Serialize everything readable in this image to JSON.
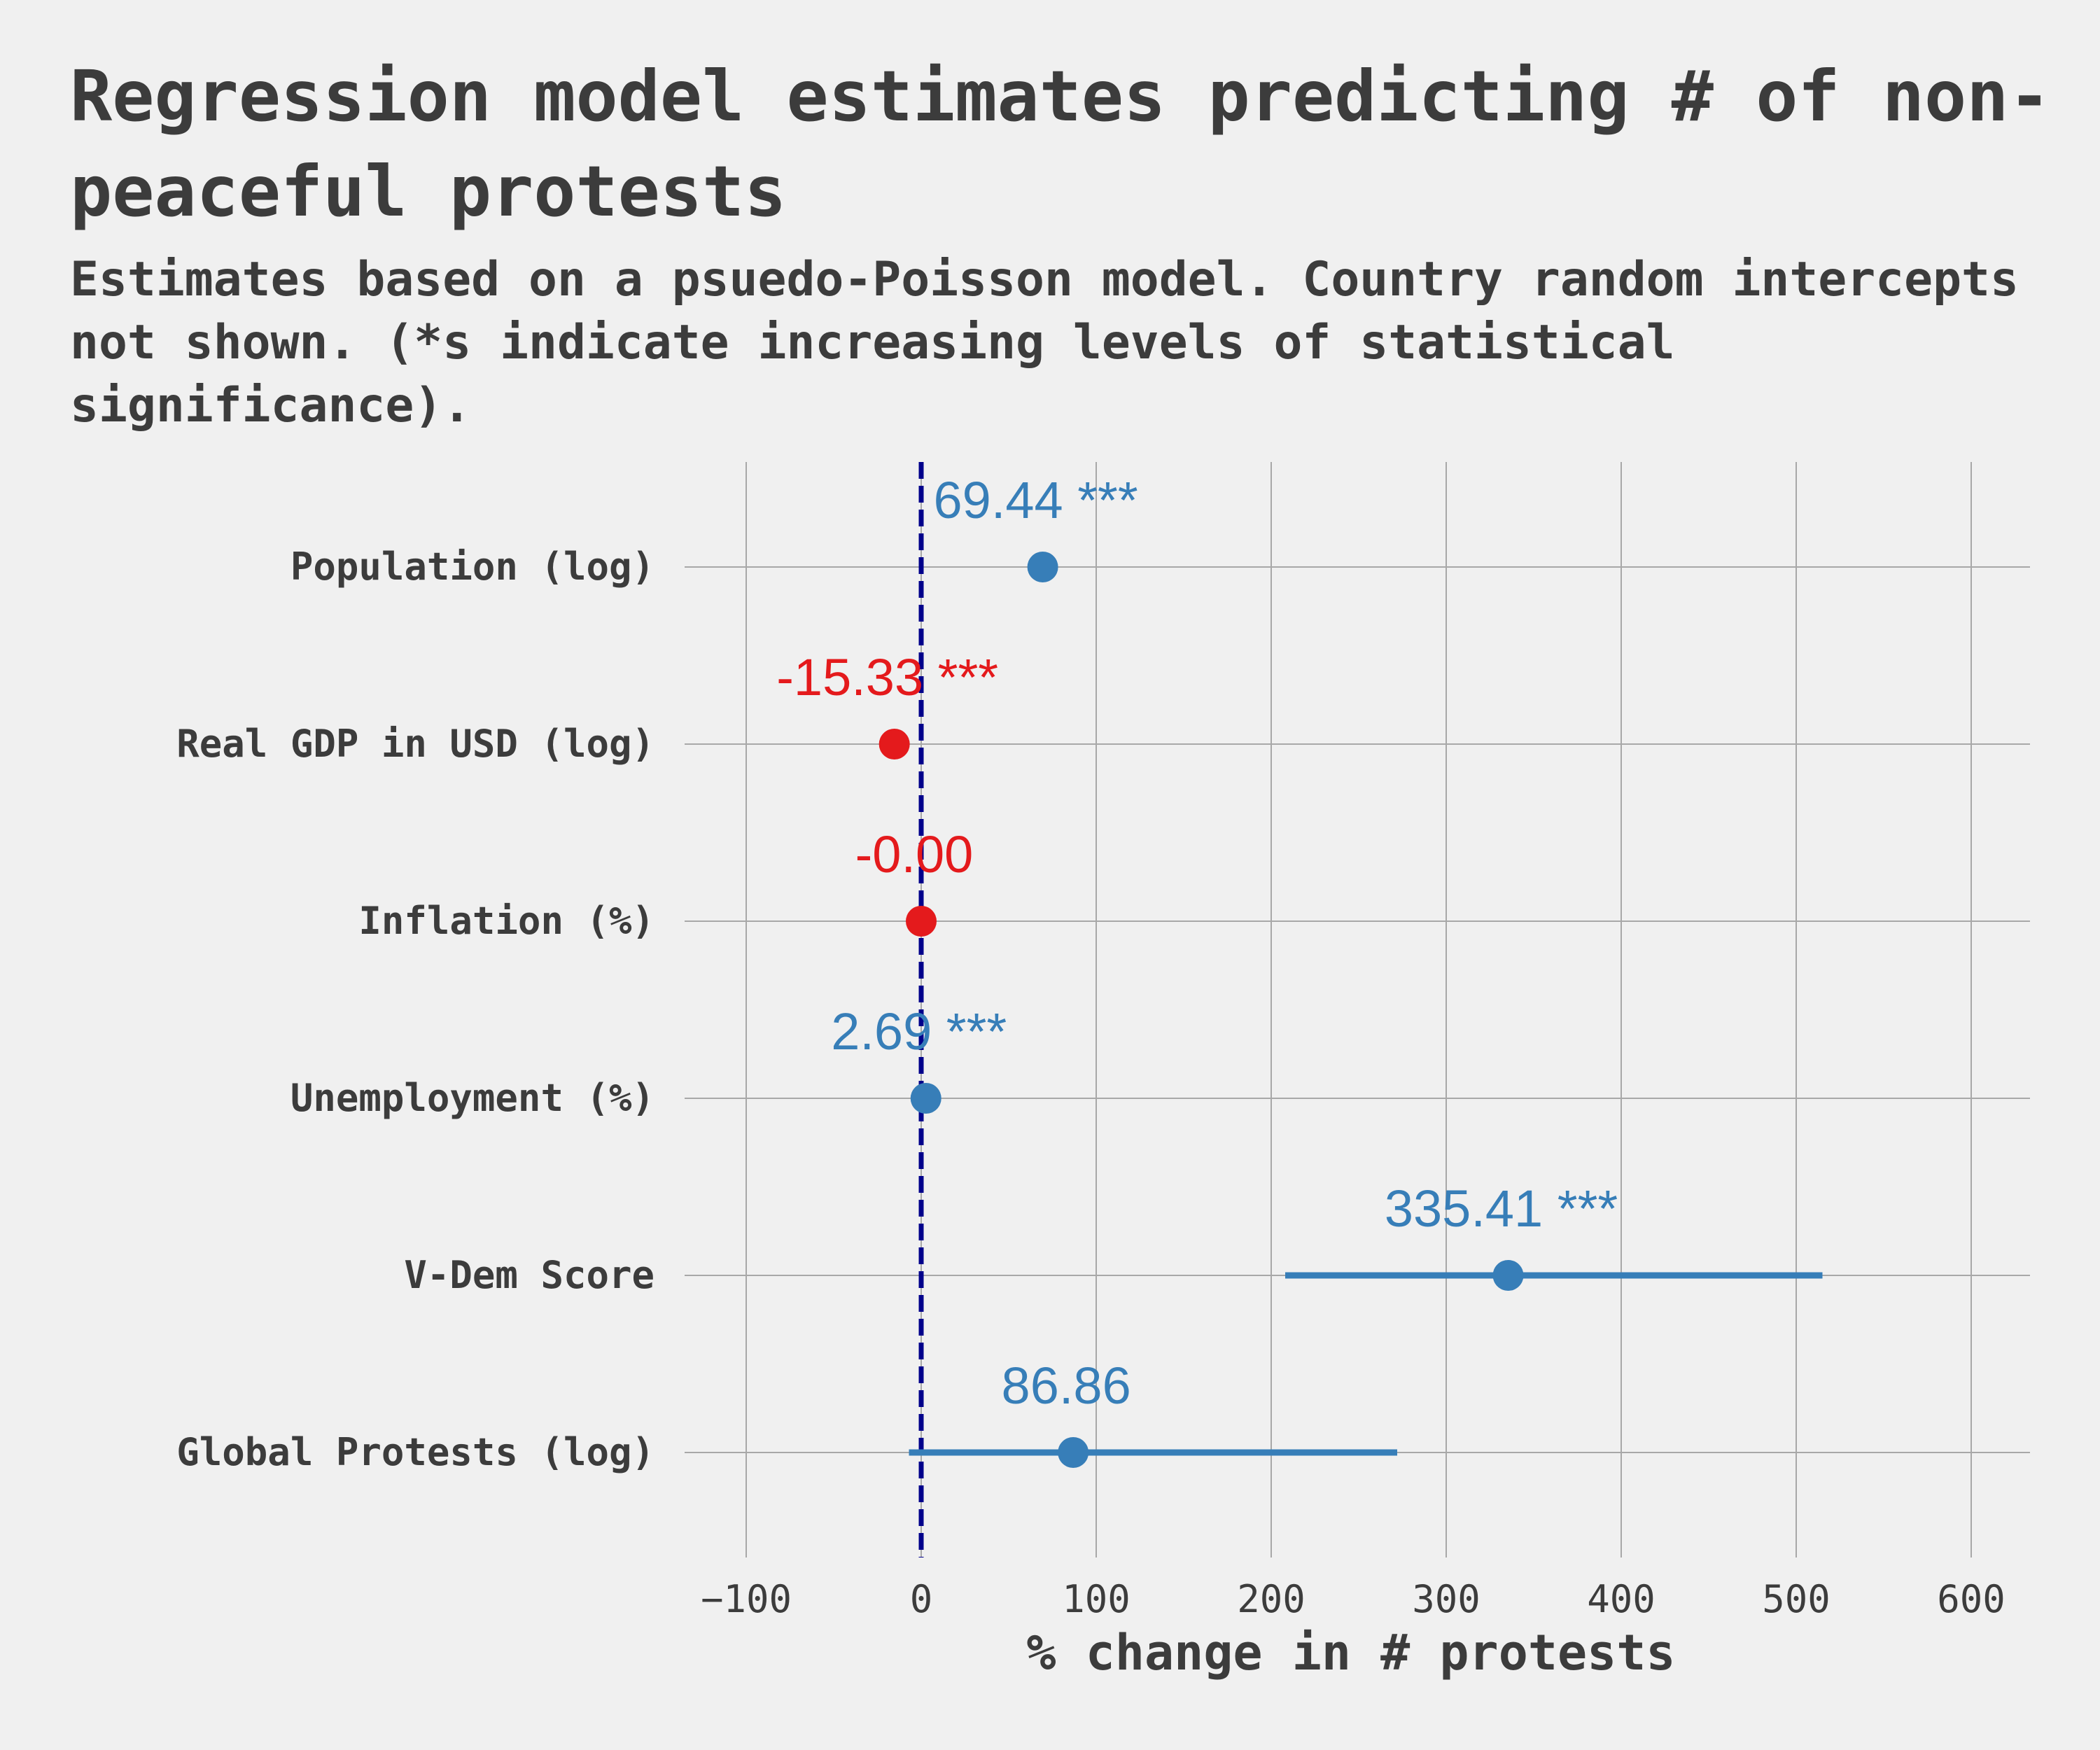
{
  "title": "Regression model estimates predicting # of non-peaceful protests",
  "subtitle": "Estimates based on a psuedo-Poisson model. Country random intercepts not shown. (*s indicate increasing levels of statistical significance).",
  "colors": {
    "positive": "#377eb8",
    "negative": "#e41a1c",
    "reference_line": "#00008b",
    "background": "#f0f0f0",
    "text": "#3c3c3c"
  },
  "chart_data": {
    "type": "scatter",
    "subtype": "coefficient plot with confidence intervals",
    "xlabel": "% change in # protests",
    "xlim": [
      -135,
      635
    ],
    "xticks": [
      -100,
      0,
      100,
      200,
      300,
      400,
      500,
      600
    ],
    "xtick_labels": [
      "−100",
      "0",
      "100",
      "200",
      "300",
      "400",
      "500",
      "600"
    ],
    "reference_line_x": 0,
    "grid": true,
    "legend": "none",
    "series": [
      {
        "label": "Population (log)",
        "estimate": 69.44,
        "ci_low": 69.44,
        "ci_high": 69.44,
        "significance": "***",
        "annotation": "69.44 ***",
        "color": "#377eb8"
      },
      {
        "label": "Real GDP in USD (log)",
        "estimate": -15.33,
        "ci_low": -15.33,
        "ci_high": -15.33,
        "significance": "***",
        "annotation": "-15.33 ***",
        "color": "#e41a1c"
      },
      {
        "label": "Inflation (%)",
        "estimate": -0.0,
        "ci_low": -0.0,
        "ci_high": -0.0,
        "significance": "",
        "annotation": "-0.00",
        "color": "#e41a1c"
      },
      {
        "label": "Unemployment (%)",
        "estimate": 2.69,
        "ci_low": 2.69,
        "ci_high": 2.69,
        "significance": "***",
        "annotation": "2.69 ***",
        "color": "#377eb8"
      },
      {
        "label": "V-Dem Score",
        "estimate": 335.41,
        "ci_low": 208,
        "ci_high": 515,
        "significance": "***",
        "annotation": "335.41 ***",
        "color": "#377eb8"
      },
      {
        "label": "Global Protests (log)",
        "estimate": 86.86,
        "ci_low": -7,
        "ci_high": 272,
        "significance": "",
        "annotation": "86.86",
        "color": "#377eb8"
      }
    ]
  }
}
